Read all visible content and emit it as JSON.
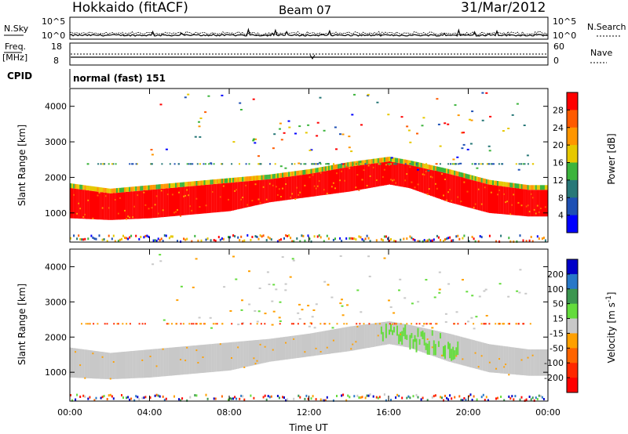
{
  "header": {
    "station": "Hokkaido (fitACF)",
    "beam": "Beam 07",
    "date": "31/Mar/2012"
  },
  "noise_panel": {
    "left_label": "N.Sky",
    "right_label": "N.Search",
    "ticks_left": [
      "10^5",
      "10^0"
    ],
    "ticks_right": [
      "10^5",
      "10^0"
    ]
  },
  "freq_panel": {
    "left_label_1": "Freq.",
    "left_label_2": "[MHz]",
    "right_label": "Nave",
    "ticks_left": [
      "18",
      "8"
    ],
    "ticks_right": [
      "60",
      "0"
    ]
  },
  "cpid_panel": {
    "label": "CPID",
    "text": "normal (fast) 151"
  },
  "chart_data": [
    {
      "type": "heatmap",
      "title": "",
      "quantity": "Power",
      "xlabel": "",
      "ylabel": "Slant Range [km]",
      "colorbar_label": "Power [dB]",
      "colorbar_ticks": [
        "28",
        "24",
        "20",
        "16",
        "12",
        "8",
        "4"
      ],
      "colorbar_colors": [
        "#ff0000",
        "#ff5a00",
        "#ff9600",
        "#e6c800",
        "#3cb43c",
        "#287878",
        "#1e50b4",
        "#0000ff"
      ],
      "x_ticks": [
        "00:00",
        "04:00",
        "08:00",
        "12:00",
        "16:00",
        "20:00",
        "00:00"
      ],
      "y_ticks": [
        "4000",
        "3000",
        "2000",
        "1000"
      ],
      "xlim_hours": [
        0,
        24
      ],
      "ylim_km": [
        180,
        4500
      ],
      "main_echo_band": {
        "time_h": [
          0,
          2,
          4,
          6,
          8,
          10,
          12,
          14,
          16,
          17,
          19,
          21,
          23,
          24
        ],
        "lower_km": [
          850,
          800,
          850,
          950,
          1050,
          1300,
          1450,
          1600,
          1800,
          1700,
          1300,
          1000,
          900,
          900
        ],
        "upper_km": [
          1700,
          1550,
          1650,
          1750,
          1850,
          1950,
          2100,
          2300,
          2450,
          2350,
          2100,
          1800,
          1650,
          1650
        ]
      }
    },
    {
      "type": "heatmap",
      "title": "",
      "quantity": "Velocity",
      "xlabel": "Time UT",
      "ylabel": "Slant Range [km]",
      "colorbar_label": "Velocity [m s^-1]",
      "colorbar_ticks": [
        "200",
        "100",
        "50",
        "15",
        "-15",
        "-50",
        "-100",
        "-200"
      ],
      "colorbar_colors": [
        "#0000c8",
        "#2878c8",
        "#3c9650",
        "#64dc3c",
        "#c8c8c8",
        "#ffa000",
        "#ff6400",
        "#ff2800",
        "#ff0000"
      ],
      "x_ticks": [
        "00:00",
        "04:00",
        "08:00",
        "12:00",
        "16:00",
        "20:00",
        "00:00"
      ],
      "y_ticks": [
        "4000",
        "3000",
        "2000",
        "1000"
      ],
      "xlim_hours": [
        0,
        24
      ],
      "ylim_km": [
        180,
        4500
      ]
    }
  ]
}
